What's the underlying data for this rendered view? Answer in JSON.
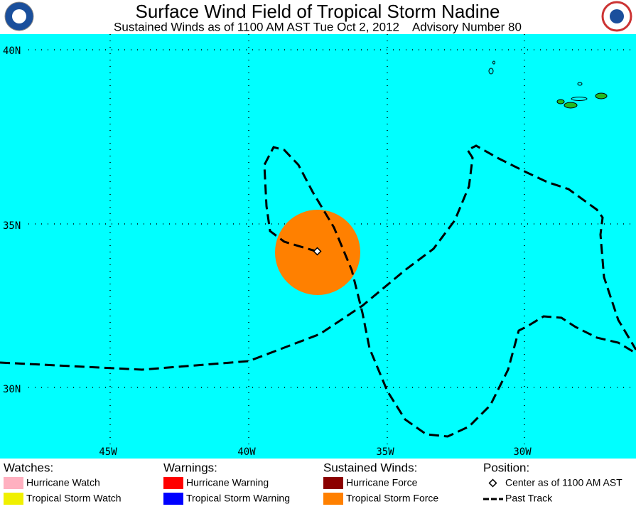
{
  "header": {
    "title": "Surface Wind Field of Tropical Storm Nadine",
    "subtitle": "Sustained Winds as of 1100 AM AST Tue Oct 2, 2012    Advisory Number 80"
  },
  "map": {
    "lat_labels": [
      "40N",
      "35N",
      "30N"
    ],
    "lon_labels": [
      "45W",
      "40W",
      "35W",
      "30W"
    ]
  },
  "legend": {
    "watches": {
      "title": "Watches:",
      "items": [
        "Hurricane Watch",
        "Tropical Storm Watch"
      ]
    },
    "warnings": {
      "title": "Warnings:",
      "items": [
        "Hurricane Warning",
        "Tropical Storm Warning"
      ]
    },
    "winds": {
      "title": "Sustained Winds:",
      "items": [
        "Hurricane Force",
        "Tropical Storm Force"
      ]
    },
    "position": {
      "title": "Position:",
      "items": [
        "Center as of 1100 AM AST",
        "Past Track"
      ]
    }
  }
}
